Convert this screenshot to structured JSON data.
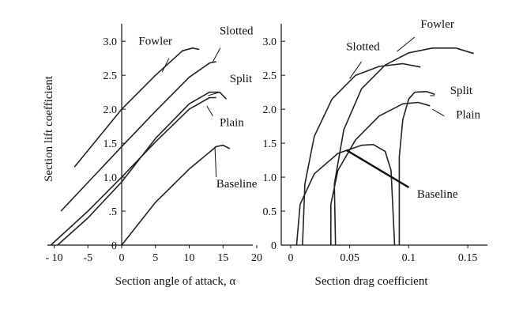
{
  "chart_data": [
    {
      "type": "line",
      "xlabel": "Section angle of attack, α",
      "ylabel": "Section lift coefficient",
      "xlim": [
        -11,
        20
      ],
      "ylim": [
        0,
        3.2
      ],
      "x_ticks": [
        "- 10",
        "-5",
        "0",
        "5",
        "10",
        "15",
        "20"
      ],
      "x_tick_values": [
        -10,
        -5,
        0,
        5,
        10,
        15,
        20
      ],
      "y_ticks": [
        "3.0",
        "2.5",
        "2.0",
        "1.5",
        "1.0",
        ".5",
        "0"
      ],
      "y_tick_values": [
        3.0,
        2.5,
        2.0,
        1.5,
        1.0,
        0.5,
        0
      ],
      "grid": false,
      "series": [
        {
          "name": "Fowler",
          "points": [
            [
              -7.0,
              1.15
            ],
            [
              0,
              2.0
            ],
            [
              5,
              2.5
            ],
            [
              9,
              2.86
            ],
            [
              10.5,
              2.9
            ],
            [
              11.5,
              2.88
            ]
          ]
        },
        {
          "name": "Slotted",
          "points": [
            [
              -9.0,
              0.5
            ],
            [
              0,
              1.45
            ],
            [
              5,
              1.97
            ],
            [
              10,
              2.47
            ],
            [
              13,
              2.68
            ],
            [
              14,
              2.7
            ]
          ]
        },
        {
          "name": "Split",
          "points": [
            [
              -9.5,
              0.0
            ],
            [
              -5,
              0.4
            ],
            [
              0,
              0.93
            ],
            [
              5,
              1.57
            ],
            [
              10,
              2.08
            ],
            [
              13,
              2.25
            ],
            [
              14.5,
              2.25
            ],
            [
              15.5,
              2.15
            ]
          ]
        },
        {
          "name": "Plain",
          "points": [
            [
              -10.5,
              0.0
            ],
            [
              -5,
              0.5
            ],
            [
              0,
              1.0
            ],
            [
              5,
              1.52
            ],
            [
              10,
              2.0
            ],
            [
              13,
              2.17
            ],
            [
              14,
              2.17
            ]
          ]
        },
        {
          "name": "Baseline",
          "points": [
            [
              0,
              0.0
            ],
            [
              5,
              0.63
            ],
            [
              10,
              1.12
            ],
            [
              14,
              1.45
            ],
            [
              15,
              1.47
            ],
            [
              16,
              1.42
            ]
          ]
        }
      ],
      "labels": [
        {
          "text": "Fowler",
          "at": [
            2.5,
            2.95
          ]
        },
        {
          "text": "Slotted",
          "at": [
            14.5,
            3.1
          ]
        },
        {
          "text": "Split",
          "at": [
            16.0,
            2.4
          ]
        },
        {
          "text": "Plain",
          "at": [
            14.5,
            1.75
          ]
        },
        {
          "text": "Baseline",
          "at": [
            14.0,
            0.85
          ]
        }
      ]
    },
    {
      "type": "line",
      "xlabel": "Section drag coefficient",
      "ylabel": "",
      "xlim": [
        -0.008,
        0.17
      ],
      "ylim": [
        0,
        3.2
      ],
      "x_ticks": [
        "0",
        "0.05",
        "0.1",
        "0.15"
      ],
      "x_tick_values": [
        0,
        0.05,
        0.1,
        0.15
      ],
      "y_ticks": [
        "3.0",
        "2.5",
        "2.0",
        "1.5",
        "1.0",
        "0.5",
        "0"
      ],
      "y_tick_values": [
        3.0,
        2.5,
        2.0,
        1.5,
        1.0,
        0.5,
        0
      ],
      "grid": false,
      "series": [
        {
          "name": "Fowler",
          "points": [
            [
              0.038,
              0.0
            ],
            [
              0.037,
              0.9
            ],
            [
              0.045,
              1.7
            ],
            [
              0.06,
              2.3
            ],
            [
              0.08,
              2.65
            ],
            [
              0.1,
              2.83
            ],
            [
              0.12,
              2.9
            ],
            [
              0.14,
              2.9
            ],
            [
              0.155,
              2.82
            ]
          ]
        },
        {
          "name": "Slotted",
          "points": [
            [
              0.01,
              0.0
            ],
            [
              0.012,
              0.9
            ],
            [
              0.02,
              1.6
            ],
            [
              0.035,
              2.15
            ],
            [
              0.055,
              2.5
            ],
            [
              0.075,
              2.63
            ],
            [
              0.095,
              2.67
            ],
            [
              0.11,
              2.62
            ]
          ]
        },
        {
          "name": "Split",
          "points": [
            [
              0.092,
              0.0
            ],
            [
              0.092,
              1.3
            ],
            [
              0.095,
              1.85
            ],
            [
              0.1,
              2.15
            ],
            [
              0.105,
              2.25
            ],
            [
              0.115,
              2.26
            ],
            [
              0.122,
              2.22
            ]
          ]
        },
        {
          "name": "Plain",
          "points": [
            [
              0.034,
              0.0
            ],
            [
              0.034,
              0.6
            ],
            [
              0.04,
              1.1
            ],
            [
              0.055,
              1.55
            ],
            [
              0.075,
              1.9
            ],
            [
              0.095,
              2.08
            ],
            [
              0.108,
              2.1
            ],
            [
              0.118,
              2.05
            ]
          ]
        },
        {
          "name": "Baseline",
          "points": [
            [
              0.005,
              0.0
            ],
            [
              0.008,
              0.6
            ],
            [
              0.02,
              1.05
            ],
            [
              0.04,
              1.35
            ],
            [
              0.06,
              1.47
            ],
            [
              0.07,
              1.48
            ],
            [
              0.08,
              1.38
            ],
            [
              0.085,
              1.1
            ],
            [
              0.088,
              0.0
            ]
          ]
        }
      ],
      "labels": [
        {
          "text": "Fowler",
          "at": [
            0.11,
            3.2
          ]
        },
        {
          "text": "Slotted",
          "at": [
            0.047,
            2.87
          ]
        },
        {
          "text": "Split",
          "at": [
            0.135,
            2.22
          ]
        },
        {
          "text": "Plain",
          "at": [
            0.14,
            1.87
          ]
        },
        {
          "text": "Baseline",
          "at": [
            0.107,
            0.7
          ]
        }
      ]
    }
  ]
}
